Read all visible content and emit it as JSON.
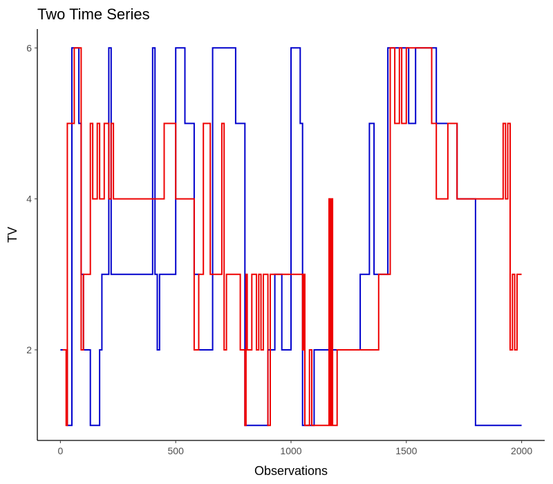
{
  "chart_data": {
    "type": "line",
    "title": "Two Time Series",
    "xlabel": "Observations",
    "ylabel": "TV",
    "xlim": [
      -100,
      2100
    ],
    "ylim": [
      0.8,
      6.25
    ],
    "x_ticks": [
      0,
      500,
      1000,
      1500,
      2000
    ],
    "y_ticks": [
      2,
      4,
      6
    ],
    "grid": false,
    "legend": "none",
    "series": [
      {
        "color": "#0000CC",
        "x": [
          0,
          30,
          50,
          60,
          80,
          90,
          100,
          120,
          130,
          150,
          160,
          170,
          180,
          195,
          210,
          220,
          240,
          300,
          400,
          410,
          420,
          430,
          500,
          540,
          560,
          580,
          600,
          620,
          660,
          700,
          760,
          800,
          850,
          900,
          930,
          960,
          1000,
          1020,
          1040,
          1050,
          1100,
          1150,
          1200,
          1300,
          1330,
          1340,
          1350,
          1360,
          1420,
          1450,
          1480,
          1510,
          1540,
          1560,
          1600,
          1630,
          1650,
          1700,
          1720,
          1730,
          1750,
          1800,
          1850,
          1900,
          1950,
          2000
        ],
        "y": [
          2,
          1,
          6,
          6,
          5,
          3,
          2,
          2,
          1,
          1,
          1,
          2,
          3,
          3,
          6,
          3,
          3,
          3,
          6,
          3,
          2,
          3,
          6,
          5,
          5,
          3,
          2,
          2,
          6,
          6,
          5,
          1,
          1,
          2,
          3,
          2,
          6,
          6,
          5,
          1,
          2,
          2,
          2,
          3,
          3,
          5,
          5,
          3,
          6,
          6,
          6,
          5,
          6,
          6,
          6,
          5,
          5,
          5,
          4,
          4,
          4,
          1,
          1,
          1,
          1,
          1
        ]
      },
      {
        "color": "#EE0000",
        "x": [
          10,
          25,
          30,
          40,
          60,
          90,
          100,
          110,
          130,
          140,
          160,
          170,
          190,
          210,
          220,
          230,
          240,
          260,
          300,
          350,
          400,
          440,
          450,
          500,
          550,
          580,
          600,
          620,
          650,
          700,
          710,
          720,
          760,
          780,
          800,
          805,
          810,
          830,
          850,
          860,
          870,
          880,
          900,
          910,
          920,
          1000,
          1050,
          1055,
          1060,
          1070,
          1080,
          1090,
          1100,
          1150,
          1165,
          1170,
          1175,
          1180,
          1190,
          1200,
          1220,
          1230,
          1250,
          1300,
          1350,
          1380,
          1390,
          1400,
          1430,
          1450,
          1470,
          1480,
          1500,
          1550,
          1600,
          1610,
          1620,
          1630,
          1640,
          1680,
          1700,
          1720,
          1750,
          1800,
          1850,
          1900,
          1920,
          1930,
          1940,
          1950,
          1960,
          1970,
          1980,
          2000
        ],
        "y": [
          2,
          1,
          5,
          5,
          6,
          2,
          3,
          3,
          5,
          4,
          5,
          4,
          5,
          4,
          5,
          4,
          4,
          4,
          4,
          4,
          4,
          4,
          5,
          4,
          4,
          2,
          3,
          5,
          3,
          5,
          2,
          3,
          3,
          2,
          1,
          3,
          2,
          3,
          2,
          3,
          2,
          3,
          1,
          3,
          3,
          3,
          2,
          3,
          1,
          1,
          2,
          1,
          1,
          1,
          4,
          1,
          4,
          1,
          1,
          2,
          2,
          2,
          2,
          2,
          2,
          3,
          3,
          3,
          6,
          5,
          6,
          5,
          6,
          6,
          6,
          5,
          5,
          4,
          4,
          5,
          5,
          4,
          4,
          4,
          4,
          4,
          5,
          4,
          5,
          2,
          3,
          2,
          3,
          3
        ]
      }
    ]
  }
}
